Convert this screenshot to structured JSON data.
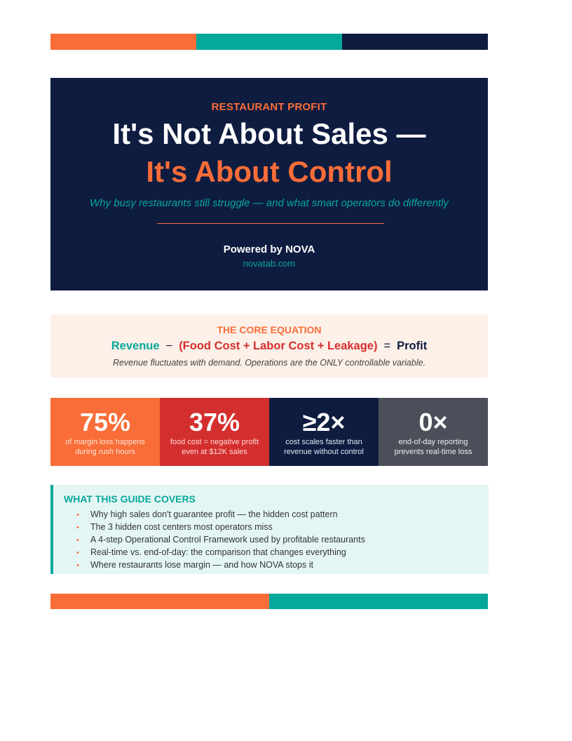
{
  "colors": {
    "orange": "#f96d38",
    "teal": "#06a89c",
    "navy": "#0e1c40",
    "red": "#d42f2f",
    "slate": "#4a4f59",
    "cream": "#fdf0e8",
    "mint": "#e4f6f4"
  },
  "hero": {
    "kicker": "RESTAURANT PROFIT",
    "title_line1": "It's Not About Sales —",
    "title_line2": "It's About Control",
    "subtitle": "Why busy restaurants still struggle — and what smart operators do differently",
    "powered_by": "Powered by NOVA",
    "url": "novatab.com"
  },
  "equation": {
    "label": "THE CORE EQUATION",
    "revenue": "Revenue",
    "minus": "−",
    "costs": "(Food Cost + Labor Cost + Leakage)",
    "equals": "=",
    "profit": "Profit",
    "note": "Revenue fluctuates with demand.  Operations are the ONLY controllable variable."
  },
  "stats": [
    {
      "value": "75%",
      "line1": "of margin loss happens",
      "line2": "during rush hours"
    },
    {
      "value": "37%",
      "line1": "food cost = negative profit",
      "line2": "even at $12K sales"
    },
    {
      "value": "≥2×",
      "line1": "cost scales faster than",
      "line2": "revenue without control"
    },
    {
      "value": "0×",
      "line1": "end-of-day reporting",
      "line2": "prevents real-time loss"
    }
  ],
  "guide": {
    "title": "WHAT THIS GUIDE COVERS",
    "bullet": "•",
    "items": [
      "Why high sales don't guarantee profit — the hidden cost pattern",
      "The 3 hidden cost centers most operators miss",
      "A 4-step Operational Control Framework used by profitable restaurants",
      "Real-time vs. end-of-day: the comparison that changes everything",
      "Where restaurants lose margin — and how NOVA stops it"
    ]
  }
}
